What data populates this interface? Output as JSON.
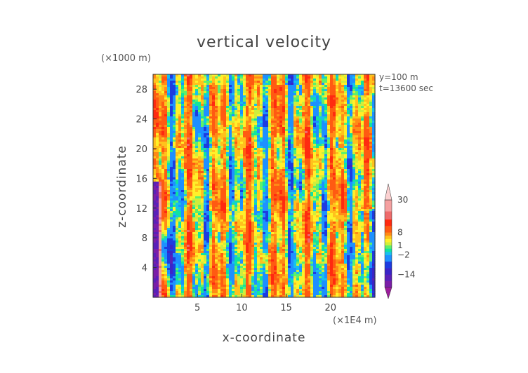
{
  "chart_data": {
    "type": "heatmap",
    "title": "vertical velocity",
    "xlabel": "x-coordinate",
    "ylabel": "z-coordinate",
    "x_unit_label": "(×1E4 m)",
    "y_unit_label": "(×1000 m)",
    "annotations": [
      "y=100 m",
      "t=13600 sec"
    ],
    "xlim": [
      0,
      25
    ],
    "ylim": [
      0,
      30
    ],
    "x_ticks": [
      5,
      10,
      15,
      20
    ],
    "y_ticks": [
      4,
      8,
      12,
      16,
      20,
      24,
      28
    ],
    "colorbar": {
      "tick_labels": [
        "30",
        "8",
        "1",
        "−2",
        "−14"
      ],
      "tick_values": [
        30,
        8,
        1,
        -2,
        -14
      ],
      "levels": [
        -22,
        -18,
        -14,
        -10,
        -6,
        -2,
        -1,
        0,
        1,
        2,
        4,
        6,
        8,
        12,
        16,
        22,
        30
      ],
      "colors": [
        "#9b1d9b",
        "#7a1ea8",
        "#5a20b8",
        "#3a24c8",
        "#1d3be0",
        "#1e90ff",
        "#17c0ee",
        "#11e3a0",
        "#5ef06b",
        "#cfee3c",
        "#fff02a",
        "#ffc21c",
        "#ff8a16",
        "#ff5a12",
        "#ff2a10",
        "#ee6b6b",
        "#f5a0a0",
        "#fbd0d0"
      ],
      "extend": "both"
    }
  }
}
